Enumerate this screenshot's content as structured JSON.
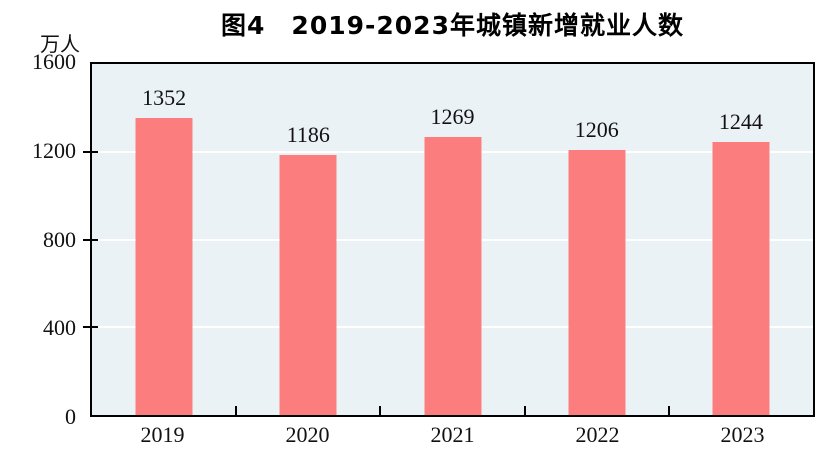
{
  "title": "图4　2019-2023年城镇新增就业人数",
  "y_unit_label": "万人",
  "colors": {
    "bar": "#fb7d7e",
    "plot_background": "#ebf2f6",
    "gridline": "#ffffff",
    "axis": "#000000",
    "text": "#1a1a1a"
  },
  "chart_data": {
    "type": "bar",
    "title": "图4　2019-2023年城镇新增就业人数",
    "categories": [
      "2019",
      "2020",
      "2021",
      "2022",
      "2023"
    ],
    "values": [
      1352,
      1186,
      1269,
      1206,
      1244
    ],
    "data_labels_shown": true,
    "xlabel": "",
    "ylabel": "万人",
    "ylim": [
      0,
      1600
    ],
    "yticks": [
      0,
      400,
      800,
      1200,
      1600
    ],
    "gridlines": [
      400,
      800,
      1200
    ],
    "grid": "horizontal-white",
    "legend": "none",
    "bar_color": "#fb7d7e",
    "plot_background": "#ebf2f6",
    "bar_width_fraction": 0.39
  }
}
